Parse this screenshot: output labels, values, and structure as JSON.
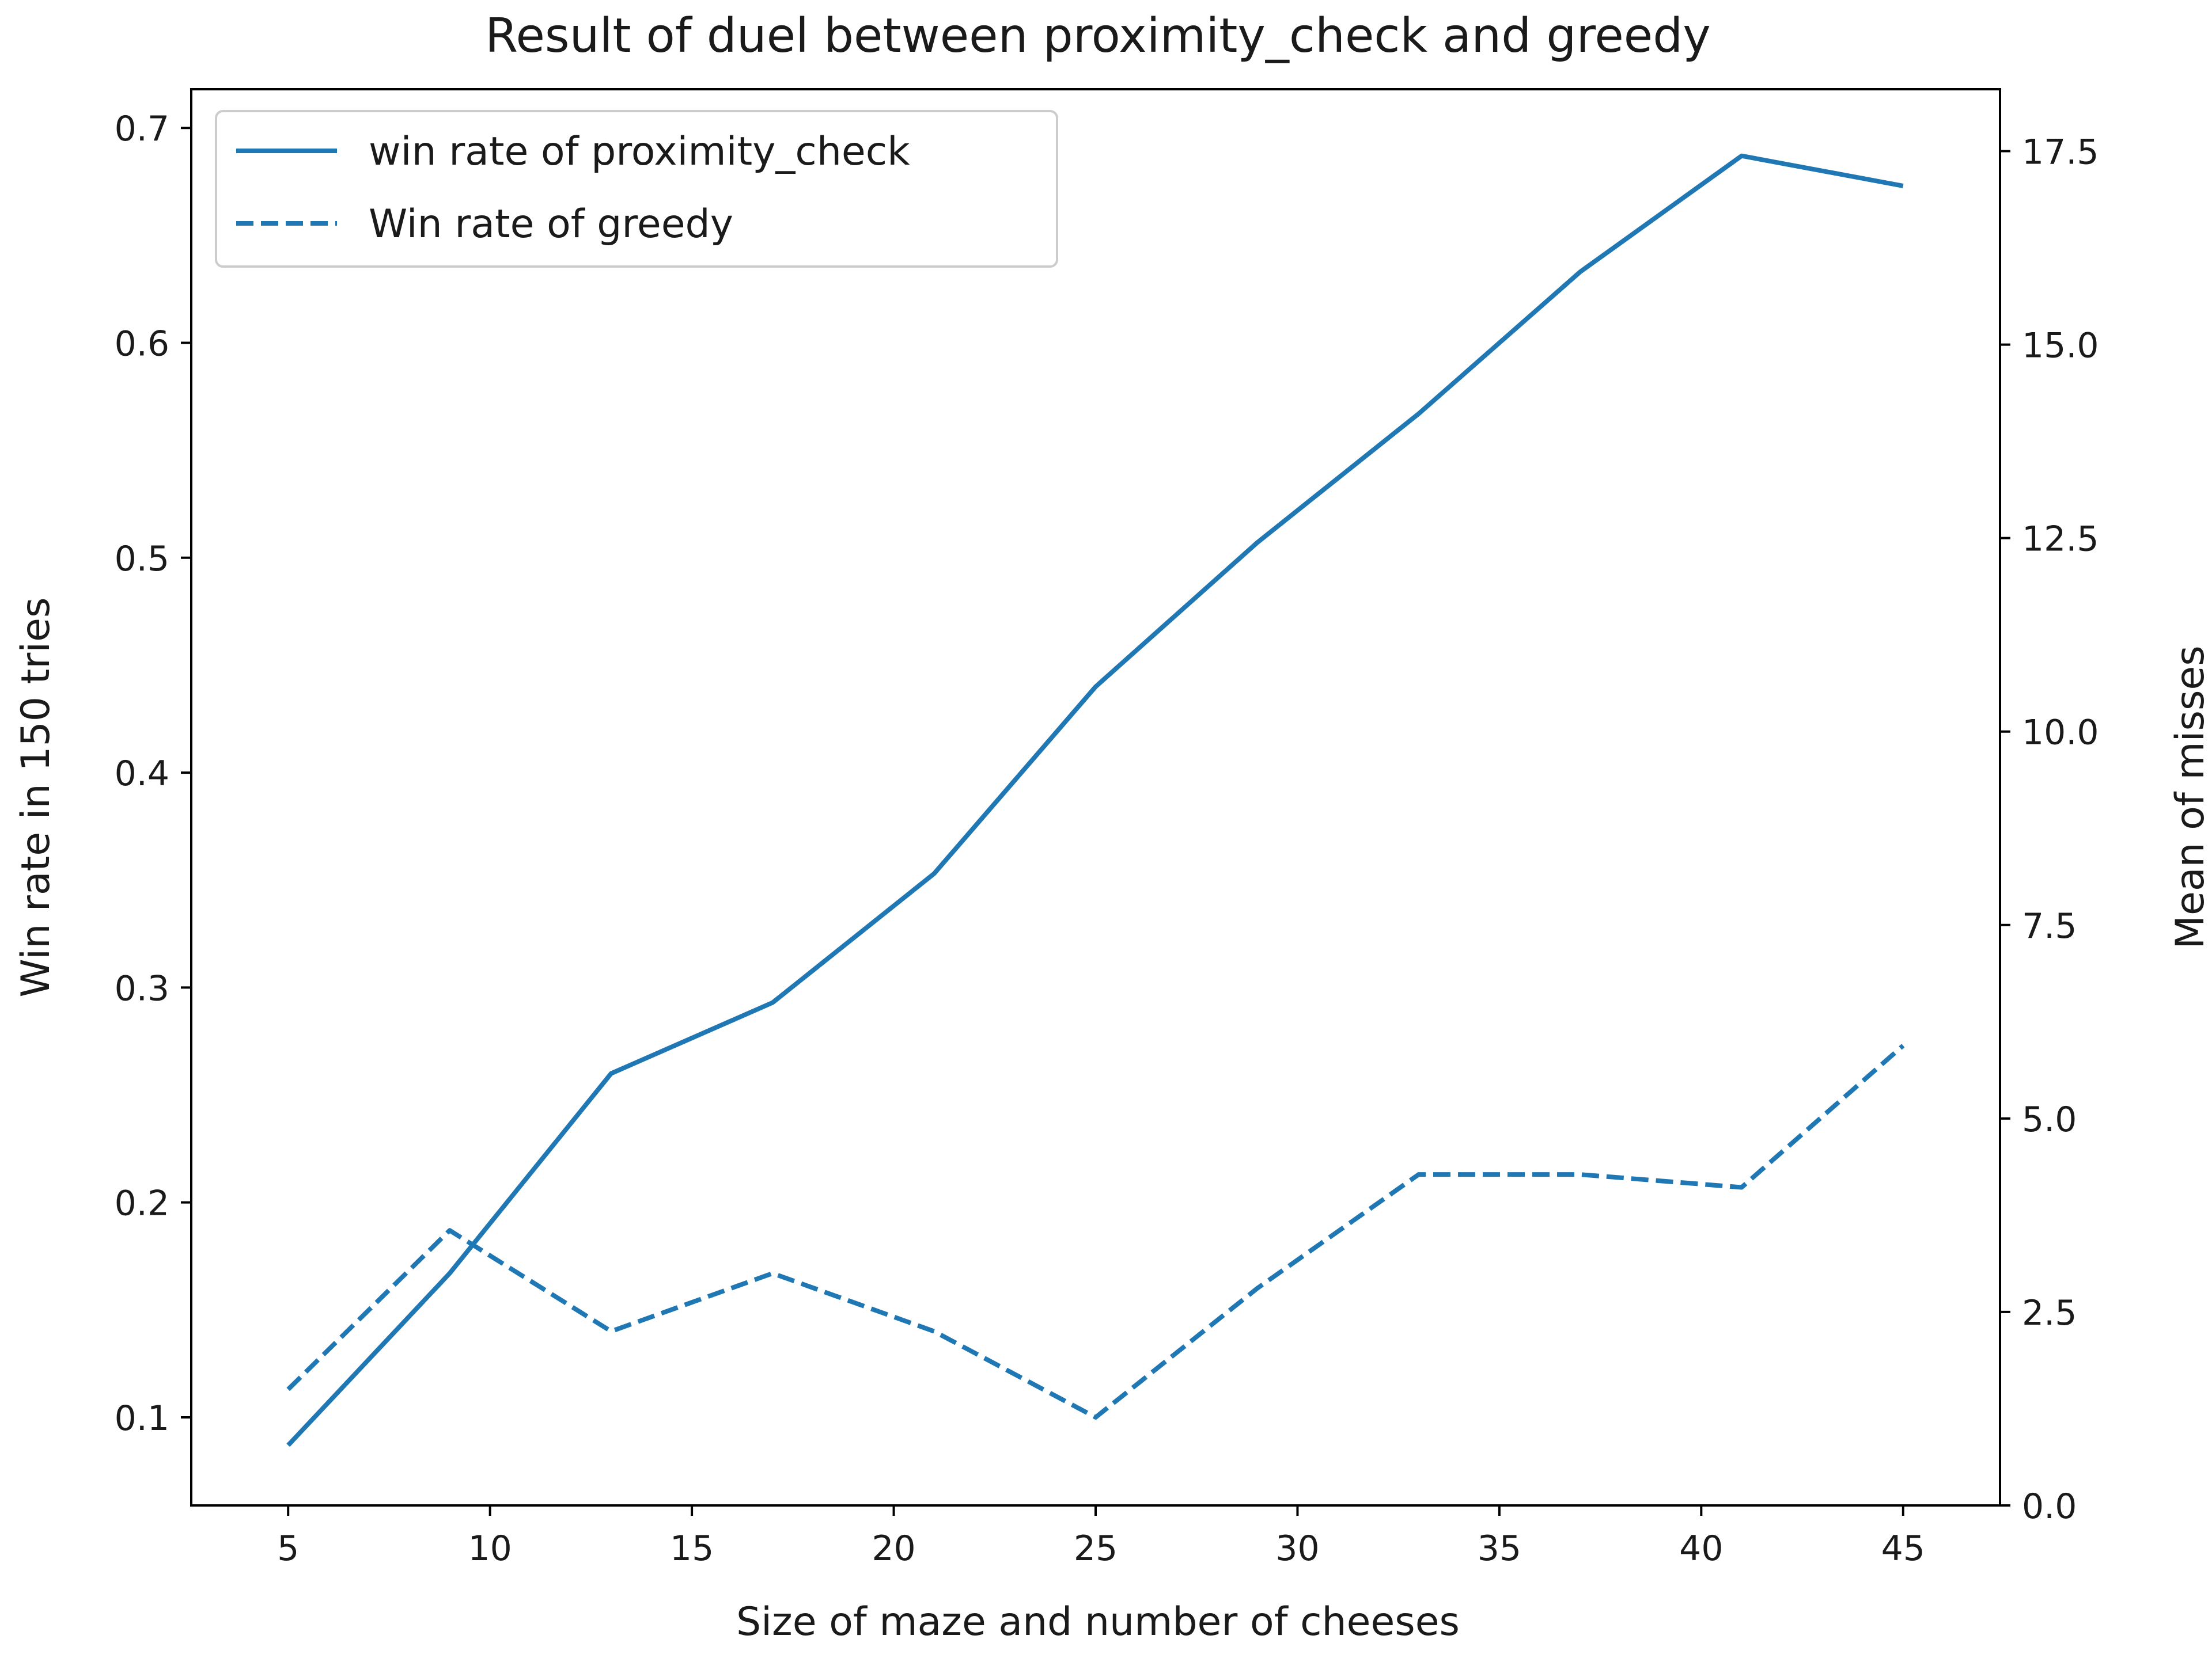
{
  "chart_data": {
    "type": "line",
    "title": "Result of duel between proximity_check and greedy",
    "xlabel": "Size of maze and number of cheeses",
    "ylabel": "Win rate in 150 tries",
    "y2label": "Mean of misses",
    "xlim": [
      2.6,
      47.4
    ],
    "ylim": [
      0.059,
      0.718
    ],
    "y2lim": [
      0,
      18.3
    ],
    "xticks": [
      5,
      10,
      15,
      20,
      25,
      30,
      35,
      40,
      45
    ],
    "yticks": [
      0.1,
      0.2,
      0.3,
      0.4,
      0.5,
      0.6,
      0.7
    ],
    "y2ticks": [
      0.0,
      2.5,
      5.0,
      7.5,
      10.0,
      12.5,
      15.0,
      17.5
    ],
    "grid": false,
    "legend_position": "top-left",
    "x": [
      5,
      9,
      13,
      17,
      21,
      25,
      29,
      33,
      37,
      41,
      45
    ],
    "series": [
      {
        "name": "win rate of proximity_check",
        "style": "solid",
        "color": "#1f77b4",
        "values": [
          0.087,
          0.167,
          0.26,
          0.293,
          0.353,
          0.44,
          0.507,
          0.567,
          0.633,
          0.687,
          0.673
        ]
      },
      {
        "name": "Win rate of greedy",
        "style": "dashed",
        "color": "#1f77b4",
        "values": [
          0.113,
          0.187,
          0.14,
          0.167,
          0.14,
          0.1,
          0.16,
          0.213,
          0.213,
          0.207,
          0.273
        ]
      }
    ]
  }
}
